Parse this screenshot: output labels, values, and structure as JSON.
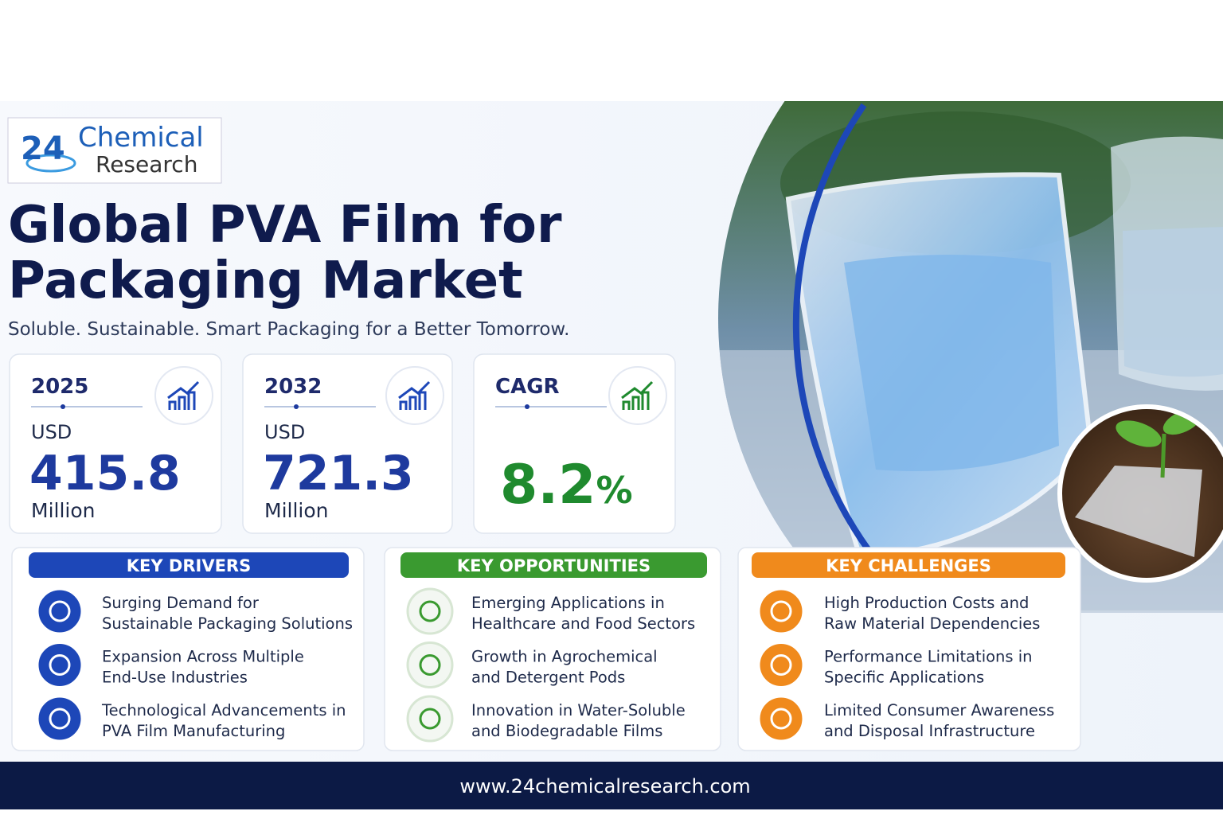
{
  "logo": {
    "number": "24",
    "line1": "Chemical",
    "line2": "Research"
  },
  "header": {
    "title_lines": [
      "Global PVA Film for",
      "Packaging Market"
    ],
    "subtitle": "Soluble. Sustainable. Smart Packaging for a Better Tomorrow."
  },
  "stats": [
    {
      "label": "2025",
      "unit": "USD",
      "value": 415.8,
      "scale": "Million"
    },
    {
      "label": "2032",
      "unit": "USD",
      "value": 721.3,
      "scale": "Million"
    },
    {
      "label": "CAGR",
      "value": 8.2,
      "suffix": "%"
    }
  ],
  "sections": [
    {
      "title": "KEY DRIVERS",
      "items": [
        {
          "lines": [
            "Surging Demand for",
            "Sustainable Packaging Solutions"
          ]
        },
        {
          "lines": [
            "Expansion Across Multiple",
            "End-Use Industries"
          ]
        },
        {
          "lines": [
            "Technological Advancements in",
            "PVA Film Manufacturing"
          ]
        }
      ]
    },
    {
      "title": "KEY OPPORTUNITIES",
      "items": [
        {
          "lines": [
            "Emerging Applications in",
            "Healthcare and Food Sectors"
          ]
        },
        {
          "lines": [
            "Growth in Agrochemical",
            "and Detergent Pods"
          ]
        },
        {
          "lines": [
            "Innovation in Water-Soluble",
            "and Biodegradable Films"
          ]
        }
      ]
    },
    {
      "title": "KEY CHALLENGES",
      "items": [
        {
          "lines": [
            "High Production Costs and",
            "Raw Material Dependencies"
          ]
        },
        {
          "lines": [
            "Performance Limitations in",
            "Specific Applications"
          ]
        },
        {
          "lines": [
            "Limited Consumer Awareness",
            "and Disposal Infrastructure"
          ]
        }
      ]
    }
  ],
  "footer": {
    "url": "www.24chemicalresearch.com"
  }
}
